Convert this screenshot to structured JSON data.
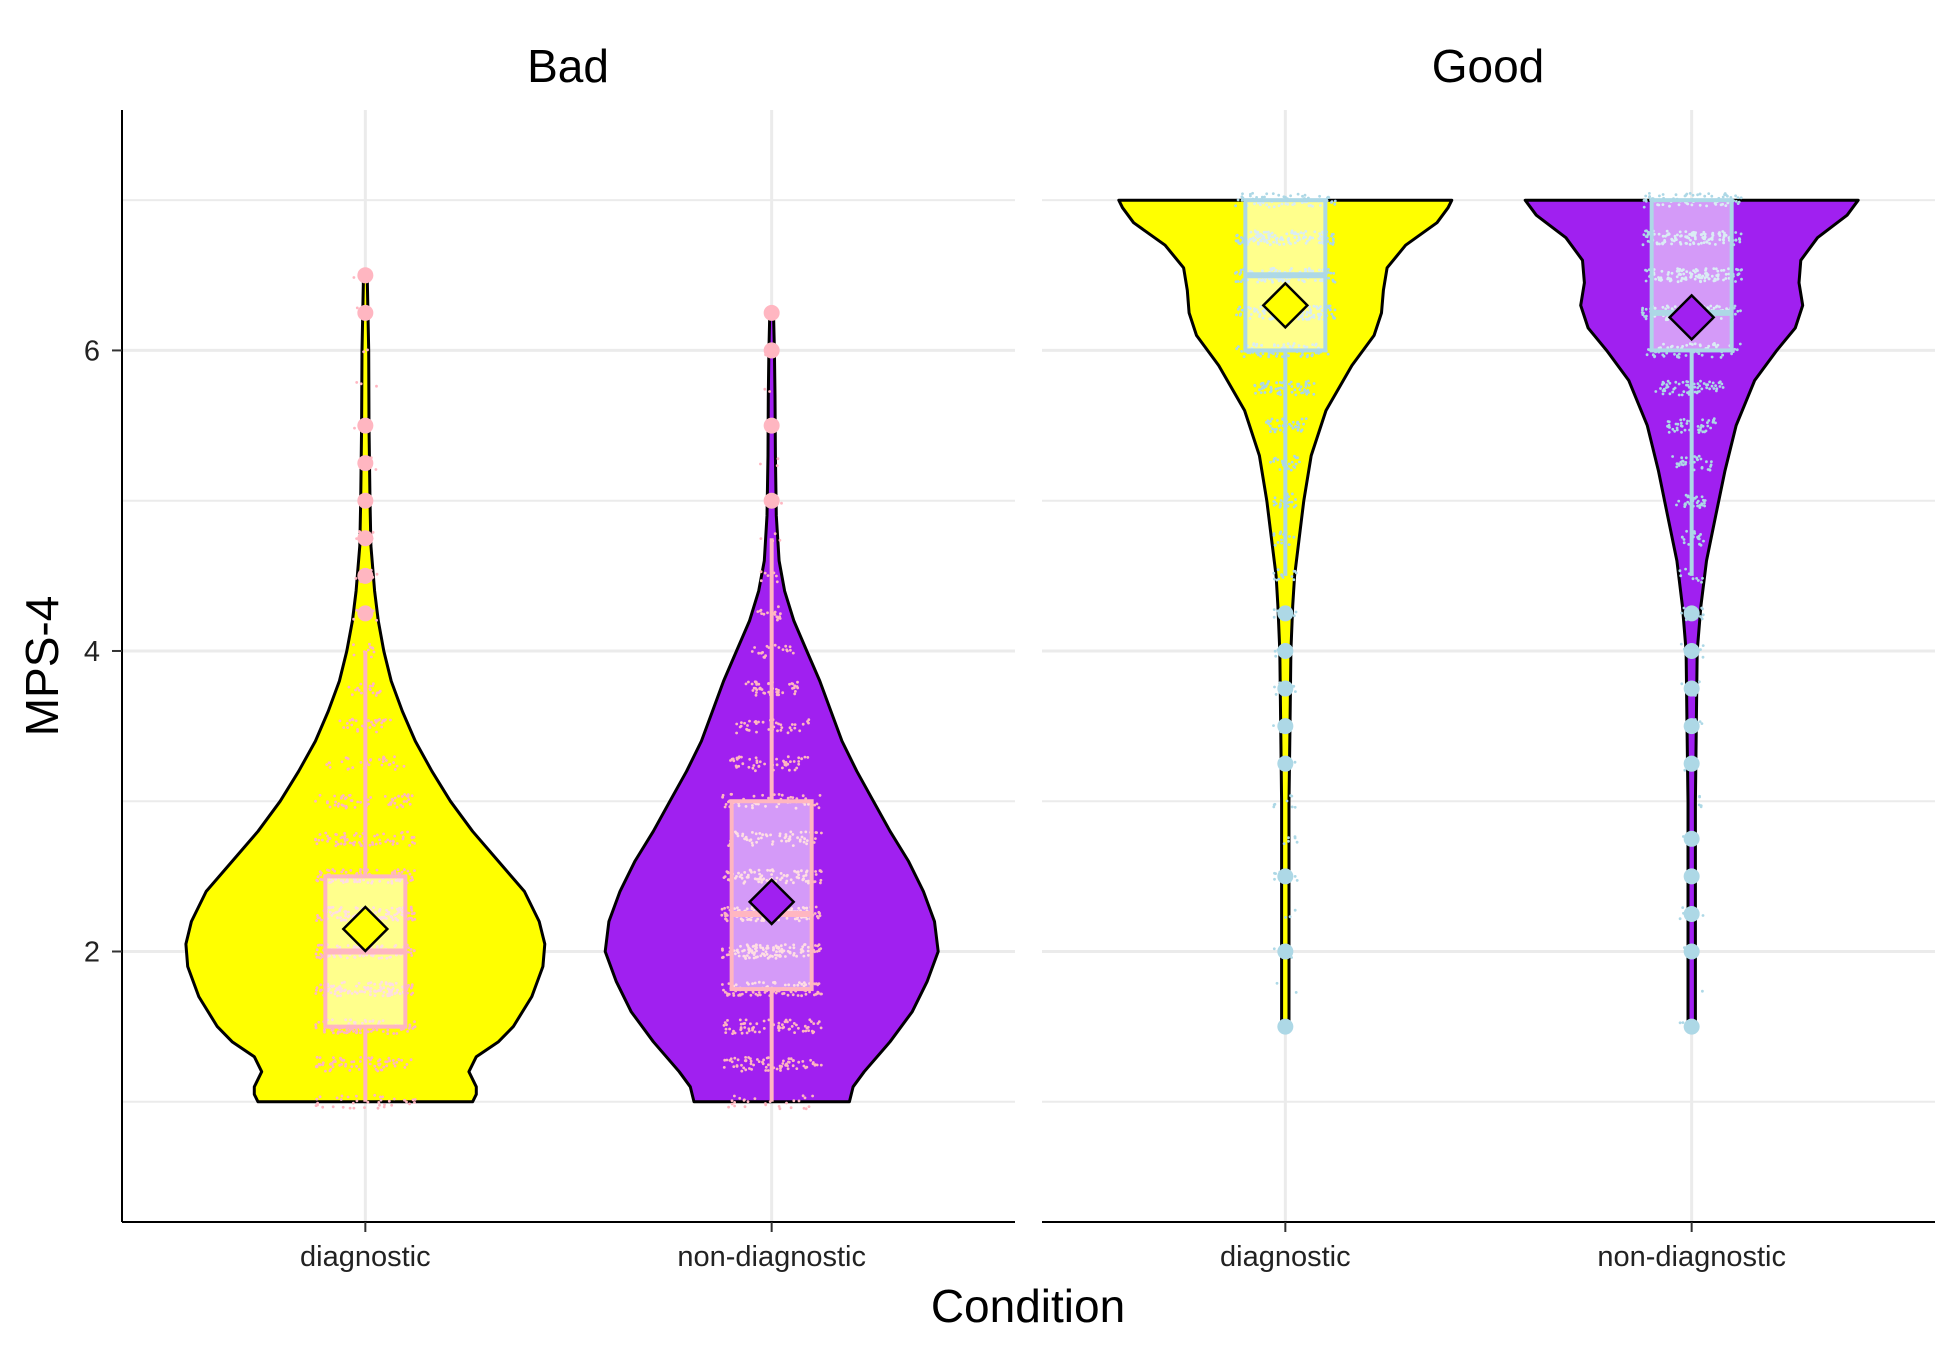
{
  "chart_data": {
    "type": "violin",
    "xlabel": "Condition",
    "ylabel": "MPS-4",
    "y_ticks": [
      2,
      4,
      6
    ],
    "ylim": [
      0.2,
      7.6
    ],
    "grid": true,
    "categories": [
      "diagnostic",
      "non-diagnostic"
    ],
    "fill_colors": {
      "diagnostic": "#ffff00",
      "non-diagnostic": "#a020f0"
    },
    "panels": [
      {
        "name": "Bad",
        "point_color": "#ffb6c1",
        "groups": [
          {
            "category": "diagnostic",
            "mean": 2.15,
            "box": {
              "q1": 1.5,
              "median": 2.0,
              "q3": 2.5,
              "whisker_low": 1.0,
              "whisker_high": 4.0
            },
            "outliers": [
              4.25,
              4.5,
              4.75,
              5.0,
              5.25,
              5.5,
              6.25,
              6.5
            ],
            "density": [
              [
                1.0,
                0.58
              ],
              [
                1.05,
                0.6
              ],
              [
                1.1,
                0.6
              ],
              [
                1.2,
                0.56
              ],
              [
                1.3,
                0.6
              ],
              [
                1.4,
                0.72
              ],
              [
                1.5,
                0.8
              ],
              [
                1.7,
                0.9
              ],
              [
                1.9,
                0.96
              ],
              [
                2.05,
                0.97
              ],
              [
                2.2,
                0.94
              ],
              [
                2.4,
                0.86
              ],
              [
                2.6,
                0.72
              ],
              [
                2.8,
                0.58
              ],
              [
                3.0,
                0.46
              ],
              [
                3.2,
                0.36
              ],
              [
                3.4,
                0.27
              ],
              [
                3.6,
                0.2
              ],
              [
                3.8,
                0.14
              ],
              [
                4.0,
                0.1
              ],
              [
                4.2,
                0.07
              ],
              [
                4.4,
                0.05
              ],
              [
                4.7,
                0.03
              ],
              [
                5.0,
                0.025
              ],
              [
                5.5,
                0.02
              ],
              [
                6.0,
                0.018
              ],
              [
                6.5,
                0.01
              ]
            ]
          },
          {
            "category": "non-diagnostic",
            "mean": 2.33,
            "box": {
              "q1": 1.75,
              "median": 2.25,
              "q3": 3.0,
              "whisker_low": 1.0,
              "whisker_high": 4.75
            },
            "outliers": [
              5.0,
              5.5,
              6.0,
              6.25
            ],
            "density": [
              [
                1.0,
                0.42
              ],
              [
                1.1,
                0.44
              ],
              [
                1.2,
                0.5
              ],
              [
                1.4,
                0.64
              ],
              [
                1.6,
                0.76
              ],
              [
                1.8,
                0.84
              ],
              [
                2.0,
                0.9
              ],
              [
                2.2,
                0.88
              ],
              [
                2.4,
                0.82
              ],
              [
                2.6,
                0.74
              ],
              [
                2.8,
                0.64
              ],
              [
                3.0,
                0.55
              ],
              [
                3.2,
                0.46
              ],
              [
                3.4,
                0.38
              ],
              [
                3.6,
                0.32
              ],
              [
                3.8,
                0.26
              ],
              [
                4.0,
                0.19
              ],
              [
                4.2,
                0.12
              ],
              [
                4.4,
                0.07
              ],
              [
                4.6,
                0.04
              ],
              [
                4.9,
                0.025
              ],
              [
                5.3,
                0.02
              ],
              [
                5.7,
                0.018
              ],
              [
                6.0,
                0.015
              ],
              [
                6.25,
                0.01
              ]
            ]
          }
        ]
      },
      {
        "name": "Good",
        "point_color": "#add8e6",
        "groups": [
          {
            "category": "diagnostic",
            "mean": 6.3,
            "box": {
              "q1": 6.0,
              "median": 6.5,
              "q3": 7.0,
              "whisker_low": 4.5,
              "whisker_high": 7.0
            },
            "outliers": [
              1.5,
              2.0,
              2.5,
              3.25,
              3.5,
              3.75,
              4.0,
              4.25
            ],
            "density": [
              [
                1.5,
                0.02
              ],
              [
                2.0,
                0.02
              ],
              [
                2.5,
                0.02
              ],
              [
                3.0,
                0.02
              ],
              [
                3.5,
                0.025
              ],
              [
                4.0,
                0.03
              ],
              [
                4.3,
                0.04
              ],
              [
                4.5,
                0.05
              ],
              [
                4.8,
                0.08
              ],
              [
                5.0,
                0.1
              ],
              [
                5.3,
                0.14
              ],
              [
                5.6,
                0.22
              ],
              [
                5.9,
                0.36
              ],
              [
                6.1,
                0.48
              ],
              [
                6.25,
                0.52
              ],
              [
                6.4,
                0.53
              ],
              [
                6.55,
                0.55
              ],
              [
                6.7,
                0.65
              ],
              [
                6.85,
                0.82
              ],
              [
                6.95,
                0.88
              ],
              [
                7.0,
                0.9
              ]
            ]
          },
          {
            "category": "non-diagnostic",
            "mean": 6.22,
            "box": {
              "q1": 6.0,
              "median": 6.25,
              "q3": 7.0,
              "whisker_low": 4.5,
              "whisker_high": 7.0
            },
            "outliers": [
              1.5,
              2.0,
              2.25,
              2.5,
              2.75,
              3.25,
              3.5,
              3.75,
              4.0,
              4.25
            ],
            "density": [
              [
                1.5,
                0.02
              ],
              [
                2.0,
                0.02
              ],
              [
                2.5,
                0.02
              ],
              [
                3.0,
                0.02
              ],
              [
                3.5,
                0.025
              ],
              [
                4.0,
                0.03
              ],
              [
                4.3,
                0.05
              ],
              [
                4.6,
                0.08
              ],
              [
                4.9,
                0.13
              ],
              [
                5.2,
                0.18
              ],
              [
                5.5,
                0.24
              ],
              [
                5.8,
                0.34
              ],
              [
                6.0,
                0.46
              ],
              [
                6.15,
                0.56
              ],
              [
                6.3,
                0.6
              ],
              [
                6.45,
                0.58
              ],
              [
                6.6,
                0.59
              ],
              [
                6.75,
                0.68
              ],
              [
                6.9,
                0.84
              ],
              [
                7.0,
                0.9
              ]
            ]
          }
        ]
      }
    ]
  }
}
